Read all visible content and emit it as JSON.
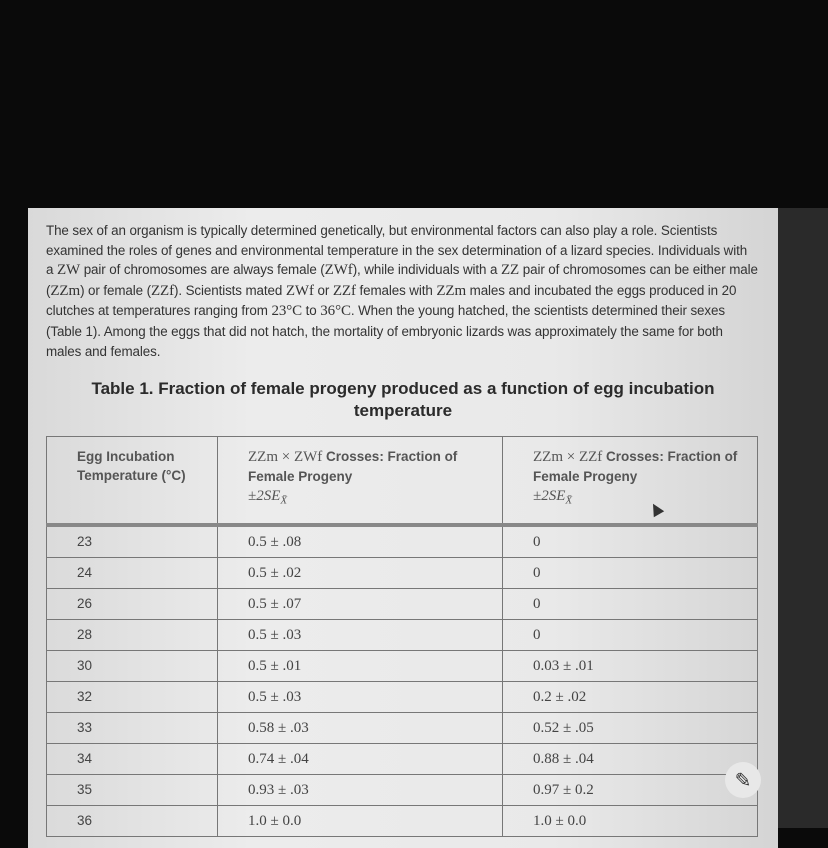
{
  "passage": {
    "p1": "The sex of an organism is typically determined genetically, but environmental factors can also play a role. Scientists examined the roles of genes and environmental temperature in the sex determination of a lizard species. Individuals with a ",
    "zw": "ZW",
    "p2": " pair of chromosomes are always female (",
    "zwf": "ZWf",
    "p3": "), while individuals with a ",
    "zz": "ZZ",
    "p4": " pair of chromosomes can be either male (",
    "zzm": "ZZm",
    "p5": ") or female (",
    "zzf": "ZZf",
    "p6": "). Scientists mated ",
    "zwf2": "ZWf",
    "p7": " or ",
    "zzf2": "ZZf",
    "p8": " females with ",
    "zzm2": "ZZm",
    "p9": " males and incubated the eggs produced in 20 clutches at temperatures ranging from ",
    "t1": "23°C",
    "p10": " to ",
    "t2": "36°C",
    "p11": ". When the young hatched, the scientists determined their sexes (Table 1). Among the eggs that did not hatch, the mortality of embryonic lizards was approximately the same for both males and females."
  },
  "table": {
    "title": "Table 1. Fraction of female progeny produced as a function of egg incubation temperature",
    "headers": {
      "col1": "Egg Incubation Temperature (°C)",
      "col2_math": "ZZm × ZWf",
      "col2_text": " Crosses: Fraction of Female Progeny",
      "col3_math": "ZZm × ZZf",
      "col3_text": " Crosses: Fraction of Female Progeny",
      "se": "±2SE",
      "se_sub": "X̄"
    },
    "rows": [
      {
        "temp": "23",
        "zwf": "0.5 ± .08",
        "zzf": "0"
      },
      {
        "temp": "24",
        "zwf": "0.5 ± .02",
        "zzf": "0"
      },
      {
        "temp": "26",
        "zwf": "0.5 ± .07",
        "zzf": "0"
      },
      {
        "temp": "28",
        "zwf": "0.5 ± .03",
        "zzf": "0"
      },
      {
        "temp": "30",
        "zwf": "0.5 ± .01",
        "zzf": "0.03 ± .01"
      },
      {
        "temp": "32",
        "zwf": "0.5 ± .03",
        "zzf": "0.2 ± .02"
      },
      {
        "temp": "33",
        "zwf": "0.58 ± .03",
        "zzf": "0.52 ± .05"
      },
      {
        "temp": "34",
        "zwf": "0.74 ± .04",
        "zzf": "0.88 ± .04"
      },
      {
        "temp": "35",
        "zwf": "0.93 ± .03",
        "zzf": "0.97 ± 0.2"
      },
      {
        "temp": "36",
        "zwf": "1.0 ± 0.0",
        "zzf": "1.0 ± 0.0"
      }
    ]
  },
  "icons": {
    "pencil": "pencil-icon",
    "cursor": "mouse-cursor"
  }
}
